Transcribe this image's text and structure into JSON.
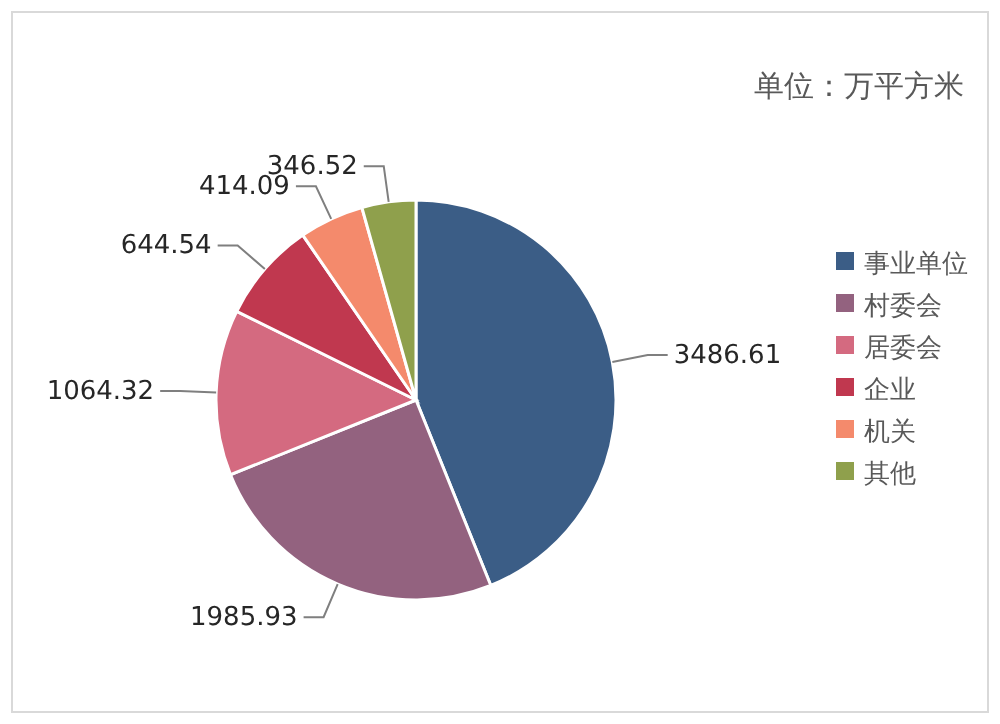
{
  "chart_data": {
    "type": "pie",
    "annotations": [
      "单位：万平方米"
    ],
    "categories": [
      "事业单位",
      "村委会",
      "居委会",
      "企业",
      "机关",
      "其他"
    ],
    "values": [
      3486.61,
      1985.93,
      1064.32,
      644.54,
      414.09,
      346.52
    ],
    "colors": [
      "#3b5d86",
      "#93627f",
      "#d46a80",
      "#c0384f",
      "#f48a6c",
      "#8fa04c"
    ],
    "data_labels": true,
    "legend": "right"
  }
}
